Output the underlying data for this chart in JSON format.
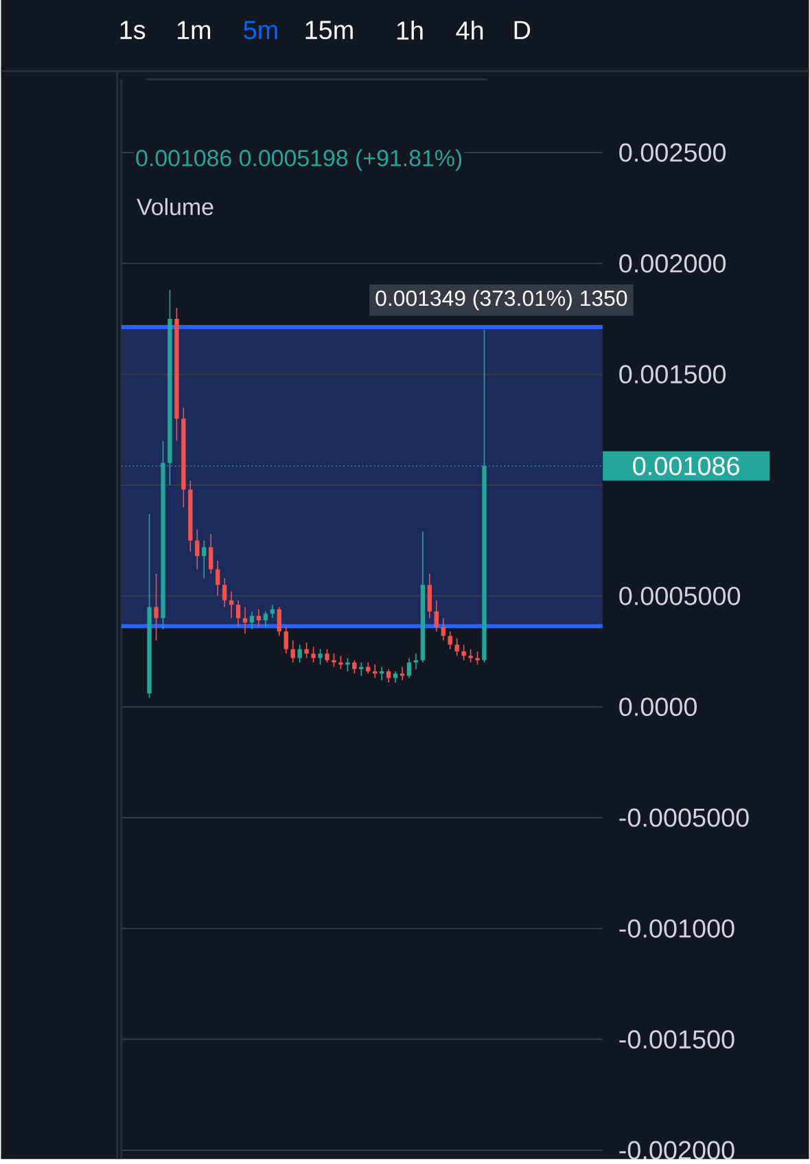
{
  "chart_data": {
    "type": "candlestick",
    "subtitle": "0.001086 0.0005198 (+91.81%)",
    "categories": [
      null,
      null,
      null,
      null,
      null,
      null,
      null,
      null,
      null,
      null,
      null,
      null,
      null,
      null,
      null,
      null,
      null,
      null,
      null,
      null,
      null,
      null,
      null,
      null,
      null,
      null,
      null,
      null,
      null,
      null,
      null,
      null,
      null,
      null,
      null,
      null,
      null,
      null,
      null,
      null,
      null,
      null,
      null,
      null,
      null,
      null,
      null,
      null,
      null,
      null
    ],
    "ohlc": [
      [
        6e-05,
        0.00087,
        4e-05,
        0.00045
      ],
      [
        0.00045,
        0.0006,
        0.0003,
        0.0004
      ],
      [
        0.0004,
        0.0012,
        0.00035,
        0.0011
      ],
      [
        0.0011,
        0.00188,
        0.001,
        0.00175
      ],
      [
        0.00175,
        0.0018,
        0.0012,
        0.0013
      ],
      [
        0.0013,
        0.00135,
        0.0009,
        0.00098
      ],
      [
        0.00098,
        0.00102,
        0.0007,
        0.00075
      ],
      [
        0.00075,
        0.0008,
        0.00062,
        0.00068
      ],
      [
        0.00068,
        0.00075,
        0.00058,
        0.00072
      ],
      [
        0.00072,
        0.00078,
        0.0006,
        0.00062
      ],
      [
        0.00062,
        0.00066,
        0.0005,
        0.00055
      ],
      [
        0.00055,
        0.00058,
        0.00045,
        0.00048
      ],
      [
        0.00048,
        0.00052,
        0.0004,
        0.00046
      ],
      [
        0.00046,
        0.00048,
        0.00036,
        0.0004
      ],
      [
        0.0004,
        0.00045,
        0.00033,
        0.00038
      ],
      [
        0.00038,
        0.00043,
        0.00035,
        0.00041
      ],
      [
        0.00041,
        0.00044,
        0.00036,
        0.00039
      ],
      [
        0.00039,
        0.00043,
        0.00036,
        0.00042
      ],
      [
        0.00042,
        0.00046,
        0.0004,
        0.00044
      ],
      [
        0.00044,
        0.00045,
        0.00032,
        0.00034
      ],
      [
        0.00034,
        0.00036,
        0.00024,
        0.00026
      ],
      [
        0.00026,
        0.0003,
        0.0002,
        0.00022
      ],
      [
        0.00022,
        0.00028,
        0.0002,
        0.00026
      ],
      [
        0.00026,
        0.00029,
        0.00022,
        0.00024
      ],
      [
        0.00024,
        0.00027,
        0.0002,
        0.00022
      ],
      [
        0.00022,
        0.00026,
        0.00019,
        0.00024
      ],
      [
        0.00024,
        0.00026,
        0.0002,
        0.00021
      ],
      [
        0.00021,
        0.00024,
        0.00018,
        0.0002
      ],
      [
        0.0002,
        0.00023,
        0.00017,
        0.00019
      ],
      [
        0.00019,
        0.00022,
        0.00016,
        0.0002
      ],
      [
        0.0002,
        0.00021,
        0.00015,
        0.00017
      ],
      [
        0.00017,
        0.0002,
        0.00014,
        0.00018
      ],
      [
        0.00018,
        0.0002,
        0.00015,
        0.00016
      ],
      [
        0.00016,
        0.00019,
        0.00013,
        0.00015
      ],
      [
        0.00015,
        0.00018,
        0.00012,
        0.00016
      ],
      [
        0.00016,
        0.00017,
        0.00011,
        0.00013
      ],
      [
        0.00013,
        0.00016,
        0.00011,
        0.00015
      ],
      [
        0.00015,
        0.00018,
        0.00012,
        0.00014
      ],
      [
        0.00014,
        0.00022,
        0.00013,
        0.0002
      ],
      [
        0.0002,
        0.00024,
        0.00017,
        0.00021
      ],
      [
        0.00021,
        0.00079,
        0.0002,
        0.00055
      ],
      [
        0.00055,
        0.0006,
        0.0004,
        0.00043
      ],
      [
        0.00043,
        0.00048,
        0.00034,
        0.00036
      ],
      [
        0.00036,
        0.0004,
        0.0003,
        0.00032
      ],
      [
        0.00032,
        0.00034,
        0.00026,
        0.00028
      ],
      [
        0.00028,
        0.00031,
        0.00023,
        0.00025
      ],
      [
        0.00025,
        0.00028,
        0.00021,
        0.00023
      ],
      [
        0.00023,
        0.00026,
        0.0002,
        0.00022
      ],
      [
        0.00022,
        0.00025,
        0.00019,
        0.00021
      ],
      [
        0.00021,
        0.0017,
        0.0002,
        0.001086
      ]
    ],
    "colors": [
      "#26a69a",
      "#ef5350",
      "#26a69a",
      "#26a69a",
      "#ef5350",
      "#ef5350",
      "#ef5350",
      "#ef5350",
      "#26a69a",
      "#ef5350",
      "#ef5350",
      "#ef5350",
      "#ef5350",
      "#ef5350",
      "#ef5350",
      "#26a69a",
      "#ef5350",
      "#26a69a",
      "#26a69a",
      "#ef5350",
      "#ef5350",
      "#ef5350",
      "#26a69a",
      "#ef5350",
      "#ef5350",
      "#26a69a",
      "#ef5350",
      "#ef5350",
      "#ef5350",
      "#26a69a",
      "#ef5350",
      "#26a69a",
      "#ef5350",
      "#ef5350",
      "#26a69a",
      "#ef5350",
      "#26a69a",
      "#ef5350",
      "#26a69a",
      "#26a69a",
      "#26a69a",
      "#ef5350",
      "#ef5350",
      "#ef5350",
      "#ef5350",
      "#ef5350",
      "#ef5350",
      "#ef5350",
      "#ef5350",
      "#26a69a"
    ],
    "ylim": [
      -0.00204,
      0.00283
    ],
    "yticks": [
      {
        "value": 0.0025,
        "label": "0.002500"
      },
      {
        "value": 0.002,
        "label": "0.002000"
      },
      {
        "value": 0.0015,
        "label": "0.001500"
      },
      {
        "value": 0.001,
        "label": null
      },
      {
        "value": 0.0005,
        "label": "0.0005000"
      },
      {
        "value": 0,
        "label": "0.0000"
      },
      {
        "value": -0.0005,
        "label": "-0.0005000"
      },
      {
        "value": -0.001,
        "label": "-0.001000"
      },
      {
        "value": -0.0015,
        "label": "-0.001500"
      },
      {
        "value": -0.002,
        "label": "-0.002000"
      }
    ],
    "grid": "y",
    "ref_lines": [
      {
        "axis": "y",
        "value": 0.001086,
        "label": "0.001086",
        "color": "#26a69a",
        "line_style": "dotted"
      },
      {
        "axis": "y",
        "value": 0.000364,
        "color": "#2962ff",
        "line_style": "solid"
      },
      {
        "axis": "y",
        "value": 0.001713,
        "color": "#2962ff",
        "line_style": "solid"
      }
    ],
    "bands": [
      {
        "axis": "y",
        "from": 0.000364,
        "to": 0.001713,
        "label": "0.001349 (373.01%) 1350",
        "color": "#1c2a5c"
      }
    ],
    "annotations": [
      "1s",
      "1m",
      "5m",
      "15m",
      "1h",
      "4h",
      "D",
      "Volume"
    ]
  }
}
